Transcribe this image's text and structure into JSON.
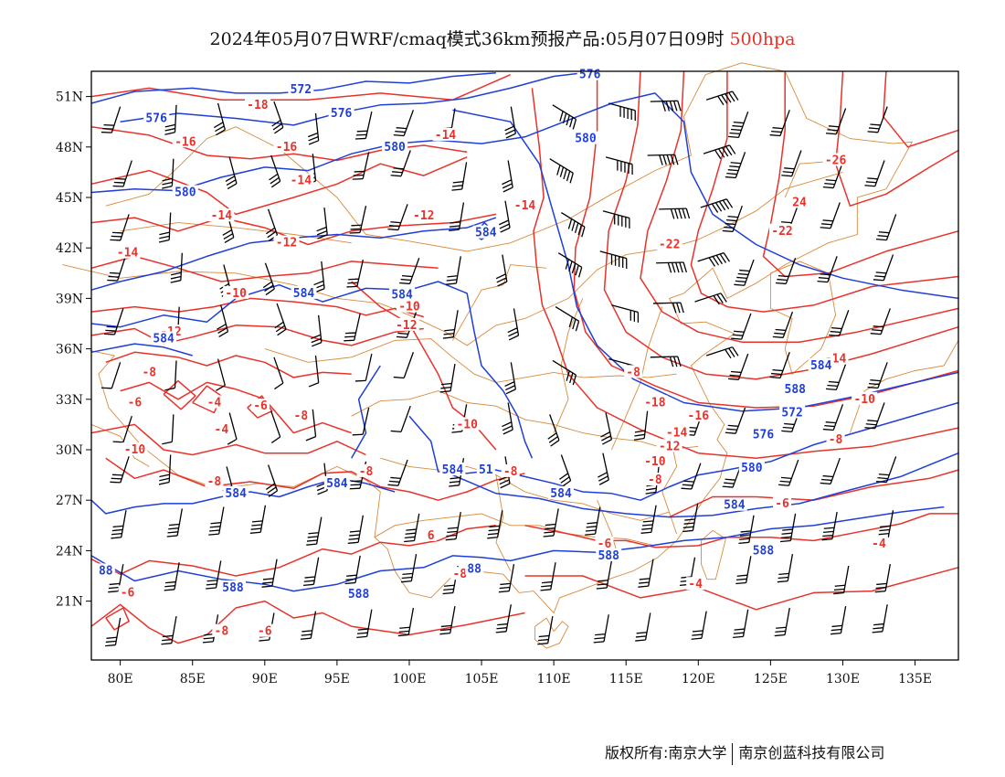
{
  "title": {
    "main": "2024年05月07日WRF/cmaq模式36km预报产品:05月07日09时",
    "level": "500hpa"
  },
  "map": {
    "lon_range": [
      78,
      138
    ],
    "lat_range": [
      17.5,
      52.5
    ],
    "lon_ticks": [
      {
        "value": 80,
        "label": "80E"
      },
      {
        "value": 85,
        "label": "85E"
      },
      {
        "value": 90,
        "label": "90E"
      },
      {
        "value": 95,
        "label": "95E"
      },
      {
        "value": 100,
        "label": "100E"
      },
      {
        "value": 105,
        "label": "105E"
      },
      {
        "value": 110,
        "label": "110E"
      },
      {
        "value": 115,
        "label": "115E"
      },
      {
        "value": 120,
        "label": "120E"
      },
      {
        "value": 125,
        "label": "125E"
      },
      {
        "value": 130,
        "label": "130E"
      },
      {
        "value": 135,
        "label": "135E"
      }
    ],
    "lat_ticks": [
      {
        "value": 21,
        "label": "21N"
      },
      {
        "value": 24,
        "label": "24N"
      },
      {
        "value": 27,
        "label": "27N"
      },
      {
        "value": 30,
        "label": "30N"
      },
      {
        "value": 33,
        "label": "33N"
      },
      {
        "value": 36,
        "label": "36N"
      },
      {
        "value": 39,
        "label": "39N"
      },
      {
        "value": 42,
        "label": "42N"
      },
      {
        "value": 45,
        "label": "45N"
      },
      {
        "value": 48,
        "label": "48N"
      },
      {
        "value": 51,
        "label": "51N"
      }
    ],
    "colors": {
      "temperature": "#e8322a",
      "height": "#1f3fd8",
      "boundary": "#d98a3a",
      "wind": "#000000",
      "level_text": "#e8322a"
    },
    "temperature_labels": [
      {
        "lon": 84.5,
        "lat": 48.3,
        "text": "-16"
      },
      {
        "lon": 89.5,
        "lat": 50.5,
        "text": "-18"
      },
      {
        "lon": 91.5,
        "lat": 48.0,
        "text": "-16"
      },
      {
        "lon": 92.5,
        "lat": 46.0,
        "text": "-14"
      },
      {
        "lon": 102.5,
        "lat": 48.7,
        "text": "-14"
      },
      {
        "lon": 87.0,
        "lat": 43.9,
        "text": "-14"
      },
      {
        "lon": 80.5,
        "lat": 41.7,
        "text": "-14"
      },
      {
        "lon": 101.0,
        "lat": 43.9,
        "text": "-12"
      },
      {
        "lon": 91.5,
        "lat": 42.3,
        "text": "-12"
      },
      {
        "lon": 88.0,
        "lat": 39.3,
        "text": "-10"
      },
      {
        "lon": 100.0,
        "lat": 38.5,
        "text": "-10"
      },
      {
        "lon": 99.8,
        "lat": 37.4,
        "text": "-12"
      },
      {
        "lon": 83.5,
        "lat": 37.0,
        "text": "-12"
      },
      {
        "lon": 82.0,
        "lat": 34.6,
        "text": "-8"
      },
      {
        "lon": 81.0,
        "lat": 32.8,
        "text": "-6"
      },
      {
        "lon": 86.5,
        "lat": 32.8,
        "text": "-4"
      },
      {
        "lon": 89.7,
        "lat": 32.6,
        "text": "-6"
      },
      {
        "lon": 87.0,
        "lat": 31.2,
        "text": "-4"
      },
      {
        "lon": 92.5,
        "lat": 32.0,
        "text": "-8"
      },
      {
        "lon": 81.0,
        "lat": 30.0,
        "text": "-10"
      },
      {
        "lon": 86.5,
        "lat": 28.1,
        "text": "-8"
      },
      {
        "lon": 97.0,
        "lat": 28.7,
        "text": "-8"
      },
      {
        "lon": 104.0,
        "lat": 31.5,
        "text": "-10"
      },
      {
        "lon": 107.0,
        "lat": 28.7,
        "text": "-8"
      },
      {
        "lon": 108.0,
        "lat": 44.5,
        "text": "-14"
      },
      {
        "lon": 118.0,
        "lat": 42.2,
        "text": "-22"
      },
      {
        "lon": 125.8,
        "lat": 43.0,
        "text": "-22"
      },
      {
        "lon": 127.0,
        "lat": 44.7,
        "text": "24"
      },
      {
        "lon": 129.5,
        "lat": 47.2,
        "text": "-26"
      },
      {
        "lon": 115.5,
        "lat": 34.6,
        "text": "-8"
      },
      {
        "lon": 117.0,
        "lat": 32.8,
        "text": "-18"
      },
      {
        "lon": 120.0,
        "lat": 32.0,
        "text": "-16"
      },
      {
        "lon": 118.5,
        "lat": 31.0,
        "text": "-14"
      },
      {
        "lon": 118.0,
        "lat": 30.2,
        "text": "-12"
      },
      {
        "lon": 117.0,
        "lat": 29.3,
        "text": "-10"
      },
      {
        "lon": 117.0,
        "lat": 28.2,
        "text": "-8"
      },
      {
        "lon": 129.5,
        "lat": 35.4,
        "text": "-14"
      },
      {
        "lon": 131.5,
        "lat": 33.0,
        "text": "-10"
      },
      {
        "lon": 129.5,
        "lat": 30.6,
        "text": "-8"
      },
      {
        "lon": 125.8,
        "lat": 26.8,
        "text": "-6"
      },
      {
        "lon": 132.5,
        "lat": 24.4,
        "text": "-4"
      },
      {
        "lon": 113.5,
        "lat": 24.4,
        "text": "-6"
      },
      {
        "lon": 119.8,
        "lat": 22.0,
        "text": "-4"
      },
      {
        "lon": 101.5,
        "lat": 24.9,
        "text": "6"
      },
      {
        "lon": 103.5,
        "lat": 22.6,
        "text": "-8"
      },
      {
        "lon": 80.5,
        "lat": 21.5,
        "text": "-6"
      },
      {
        "lon": 87.0,
        "lat": 19.2,
        "text": "-8"
      },
      {
        "lon": 90.0,
        "lat": 19.2,
        "text": "-6"
      }
    ],
    "height_labels": [
      {
        "lon": 92.5,
        "lat": 51.4,
        "text": "572"
      },
      {
        "lon": 95.3,
        "lat": 50.0,
        "text": "576"
      },
      {
        "lon": 112.5,
        "lat": 52.3,
        "text": "576"
      },
      {
        "lon": 82.5,
        "lat": 49.7,
        "text": "576"
      },
      {
        "lon": 99.0,
        "lat": 48.0,
        "text": "580"
      },
      {
        "lon": 112.2,
        "lat": 48.5,
        "text": "580"
      },
      {
        "lon": 84.5,
        "lat": 45.3,
        "text": "580"
      },
      {
        "lon": 105.3,
        "lat": 42.9,
        "text": "584"
      },
      {
        "lon": 92.7,
        "lat": 39.3,
        "text": "584"
      },
      {
        "lon": 99.5,
        "lat": 39.2,
        "text": "584"
      },
      {
        "lon": 83.0,
        "lat": 36.6,
        "text": "584"
      },
      {
        "lon": 128.5,
        "lat": 35.0,
        "text": "584"
      },
      {
        "lon": 126.7,
        "lat": 33.6,
        "text": "588"
      },
      {
        "lon": 126.5,
        "lat": 32.2,
        "text": "572"
      },
      {
        "lon": 124.5,
        "lat": 30.9,
        "text": "576"
      },
      {
        "lon": 123.7,
        "lat": 28.9,
        "text": "580"
      },
      {
        "lon": 122.5,
        "lat": 26.7,
        "text": "584"
      },
      {
        "lon": 103.0,
        "lat": 28.8,
        "text": "584"
      },
      {
        "lon": 95.0,
        "lat": 28.0,
        "text": "584"
      },
      {
        "lon": 88.0,
        "lat": 27.4,
        "text": "584"
      },
      {
        "lon": 105.3,
        "lat": 28.8,
        "text": "51"
      },
      {
        "lon": 110.5,
        "lat": 27.4,
        "text": "584"
      },
      {
        "lon": 113.8,
        "lat": 23.7,
        "text": "588"
      },
      {
        "lon": 124.5,
        "lat": 24.0,
        "text": "588"
      },
      {
        "lon": 104.5,
        "lat": 22.9,
        "text": "88"
      },
      {
        "lon": 79.0,
        "lat": 22.8,
        "text": "88"
      },
      {
        "lon": 87.8,
        "lat": 21.8,
        "text": "588"
      },
      {
        "lon": 96.5,
        "lat": 21.4,
        "text": "588"
      }
    ]
  },
  "footer": {
    "left": "版权所有:南京大学",
    "right": "南京创蓝科技有限公司"
  }
}
